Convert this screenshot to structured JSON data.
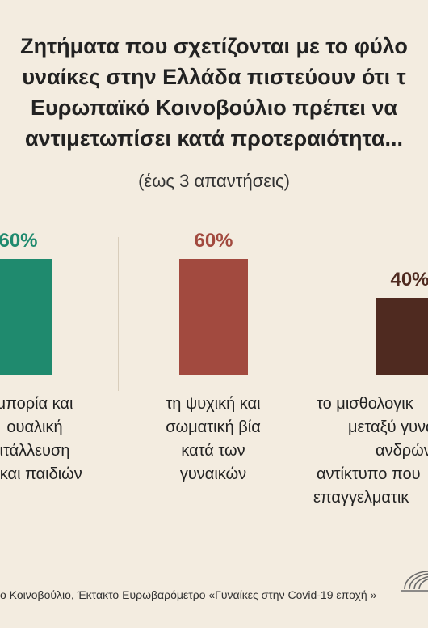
{
  "chart_data": {
    "type": "bar",
    "title_lines": [
      "Ζητήματα που σχετίζονται με το φύλο",
      "υναίκες στην Ελλάδα πιστεύουν ότι τ",
      "Ευρωπαϊκό Κοινοβούλιο πρέπει να",
      "αντιμετωπίσει κατά προτεραιότητα..."
    ],
    "subtitle": "(έως 3 απαντήσεις)",
    "ylim": [
      0,
      100
    ],
    "grid": false,
    "categories": [
      {
        "value": 60,
        "value_label": "60%",
        "color": "#1f8a6e",
        "label_lines": [
          "μπορία και",
          "ουαλική",
          "ιτάλλευση",
          "ν και παιδιών"
        ]
      },
      {
        "value": 60,
        "value_label": "60%",
        "color": "#a24a3f",
        "label_lines": [
          "τη ψυχική και",
          "σωματική βία",
          "κατά των",
          "γυναικών"
        ]
      },
      {
        "value": 40,
        "value_label": "40%",
        "color": "#4f2a20",
        "label_lines": [
          "το μισθολογικ",
          "μεταξύ γυνα",
          "ανδρών κ",
          "αντίκτυπο που",
          "επαγγελματικ"
        ]
      }
    ]
  },
  "footer": {
    "source": "ο Κοινοβούλιο, Έκτακτο Ευρωβαρόμετρο «Γυναίκες στην Covid-19 εποχή »"
  }
}
